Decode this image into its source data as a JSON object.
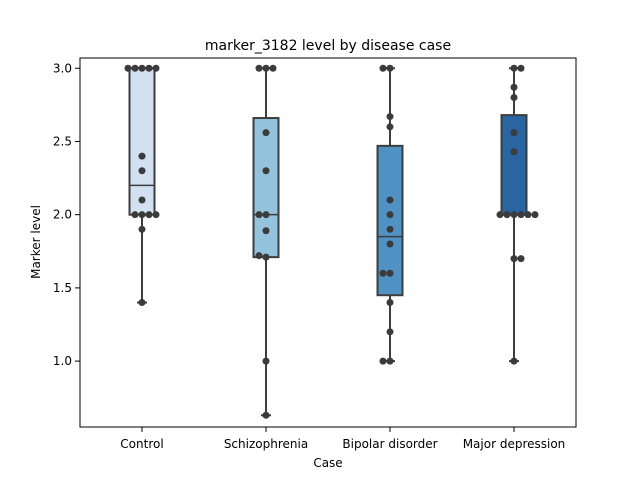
{
  "chart_data": {
    "type": "box",
    "title": "marker_3182 level by disease case",
    "xlabel": "Case",
    "ylabel": "Marker level",
    "ylim": [
      0.55,
      3.07
    ],
    "yticks": [
      1.0,
      1.5,
      2.0,
      2.5,
      3.0
    ],
    "ytick_labels": [
      "1.0",
      "1.5",
      "2.0",
      "2.5",
      "3.0"
    ],
    "grid": false,
    "categories": [
      "Control",
      "Schizophrenia",
      "Bipolar disorder",
      "Major depression"
    ],
    "colors": [
      "#d2e1f1",
      "#94c3de",
      "#4f92c3",
      "#2865a2"
    ],
    "boxes": [
      {
        "min": 1.4,
        "q1": 2.0,
        "median": 2.2,
        "q3": 3.0,
        "max": 3.0
      },
      {
        "min": 0.63,
        "q1": 1.71,
        "median": 2.0,
        "q3": 2.66,
        "max": 3.0
      },
      {
        "min": 1.0,
        "q1": 1.45,
        "median": 1.85,
        "q3": 2.47,
        "max": 3.0
      },
      {
        "min": 1.0,
        "q1": 2.0,
        "median": 2.0,
        "q3": 2.68,
        "max": 3.0
      }
    ],
    "points": [
      [
        {
          "y": 3.0,
          "dx": -14
        },
        {
          "y": 3.0,
          "dx": -7
        },
        {
          "y": 3.0,
          "dx": 0
        },
        {
          "y": 3.0,
          "dx": 7
        },
        {
          "y": 3.0,
          "dx": 14
        },
        {
          "y": 2.4,
          "dx": 0
        },
        {
          "y": 2.3,
          "dx": 0
        },
        {
          "y": 2.1,
          "dx": 0
        },
        {
          "y": 2.0,
          "dx": -7
        },
        {
          "y": 2.0,
          "dx": 0
        },
        {
          "y": 2.0,
          "dx": 7
        },
        {
          "y": 2.0,
          "dx": 14
        },
        {
          "y": 1.9,
          "dx": 0
        },
        {
          "y": 1.4,
          "dx": 0
        }
      ],
      [
        {
          "y": 3.0,
          "dx": -7
        },
        {
          "y": 3.0,
          "dx": 0
        },
        {
          "y": 3.0,
          "dx": 7
        },
        {
          "y": 2.56,
          "dx": 0
        },
        {
          "y": 2.3,
          "dx": 0
        },
        {
          "y": 2.0,
          "dx": -7
        },
        {
          "y": 2.0,
          "dx": 0
        },
        {
          "y": 1.89,
          "dx": 0
        },
        {
          "y": 1.72,
          "dx": -7
        },
        {
          "y": 1.71,
          "dx": 0
        },
        {
          "y": 1.0,
          "dx": 0
        },
        {
          "y": 0.63,
          "dx": 0
        }
      ],
      [
        {
          "y": 3.0,
          "dx": -7
        },
        {
          "y": 3.0,
          "dx": 0
        },
        {
          "y": 2.67,
          "dx": 0
        },
        {
          "y": 2.6,
          "dx": 0
        },
        {
          "y": 2.1,
          "dx": 0
        },
        {
          "y": 2.0,
          "dx": 0
        },
        {
          "y": 1.9,
          "dx": 0
        },
        {
          "y": 1.8,
          "dx": 0
        },
        {
          "y": 1.6,
          "dx": -7
        },
        {
          "y": 1.6,
          "dx": 0
        },
        {
          "y": 1.4,
          "dx": 0
        },
        {
          "y": 1.2,
          "dx": 0
        },
        {
          "y": 1.0,
          "dx": -7
        },
        {
          "y": 1.0,
          "dx": 0
        }
      ],
      [
        {
          "y": 3.0,
          "dx": 0
        },
        {
          "y": 3.0,
          "dx": 7
        },
        {
          "y": 2.87,
          "dx": 0
        },
        {
          "y": 2.8,
          "dx": 0
        },
        {
          "y": 2.56,
          "dx": 0
        },
        {
          "y": 2.43,
          "dx": 0
        },
        {
          "y": 2.0,
          "dx": -14
        },
        {
          "y": 2.0,
          "dx": -7
        },
        {
          "y": 2.0,
          "dx": 0
        },
        {
          "y": 2.0,
          "dx": 7
        },
        {
          "y": 2.0,
          "dx": 14
        },
        {
          "y": 2.0,
          "dx": 21
        },
        {
          "y": 1.7,
          "dx": 0
        },
        {
          "y": 1.7,
          "dx": 7
        },
        {
          "y": 1.0,
          "dx": 0
        }
      ]
    ]
  }
}
